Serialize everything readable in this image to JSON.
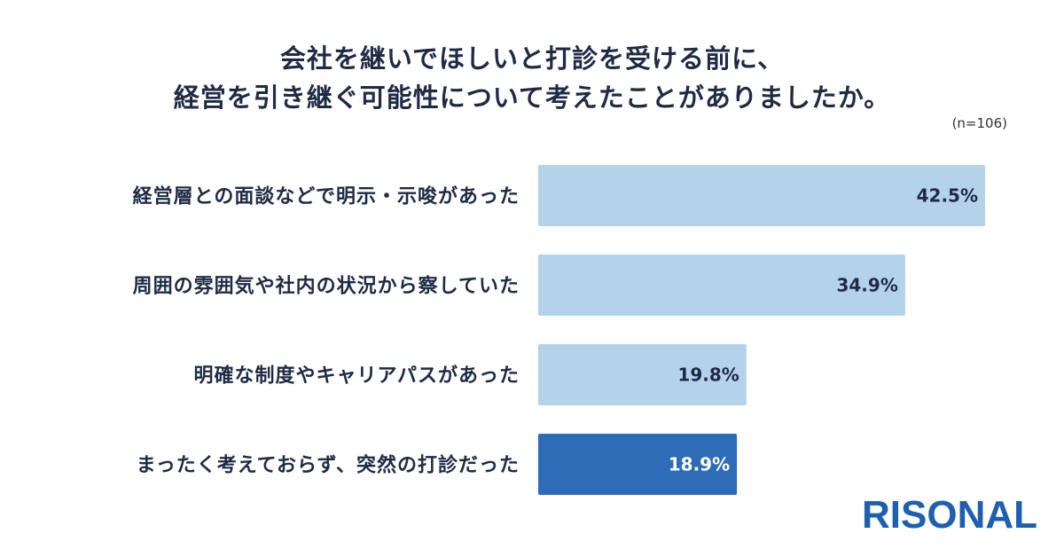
{
  "title_lines": [
    "会社を継いでほしいと打診を受ける前に、",
    "経営を引き継ぐ可能性について考えたことがありましたか。"
  ],
  "sample_size": "(n=106)",
  "logo_text": "RISONAL",
  "colors": {
    "bar_light": "#b4d2e9",
    "bar_highlight": "#2f6cb8",
    "text_dark": "#1f2a44",
    "text_light": "#ffffff",
    "logo": "#1e5fb0"
  },
  "chart_data": {
    "type": "bar",
    "orientation": "horizontal",
    "title": "会社を継いでほしいと打診を受ける前に、経営を引き継ぐ可能性について考えたことがありましたか。",
    "categories": [
      "経営層との面談などで明示・示唆があった",
      "周囲の雰囲気や社内の状況から察していた",
      "明確な制度やキャリアパスがあった",
      "まったく考えておらず、突然の打診だった"
    ],
    "values": [
      42.5,
      34.9,
      19.8,
      18.9
    ],
    "value_labels": [
      "42.5%",
      "34.9%",
      "19.8%",
      "18.9%"
    ],
    "highlighted_index": 3,
    "xlim": [
      0,
      42.5
    ],
    "grid": false,
    "legend": "none"
  }
}
